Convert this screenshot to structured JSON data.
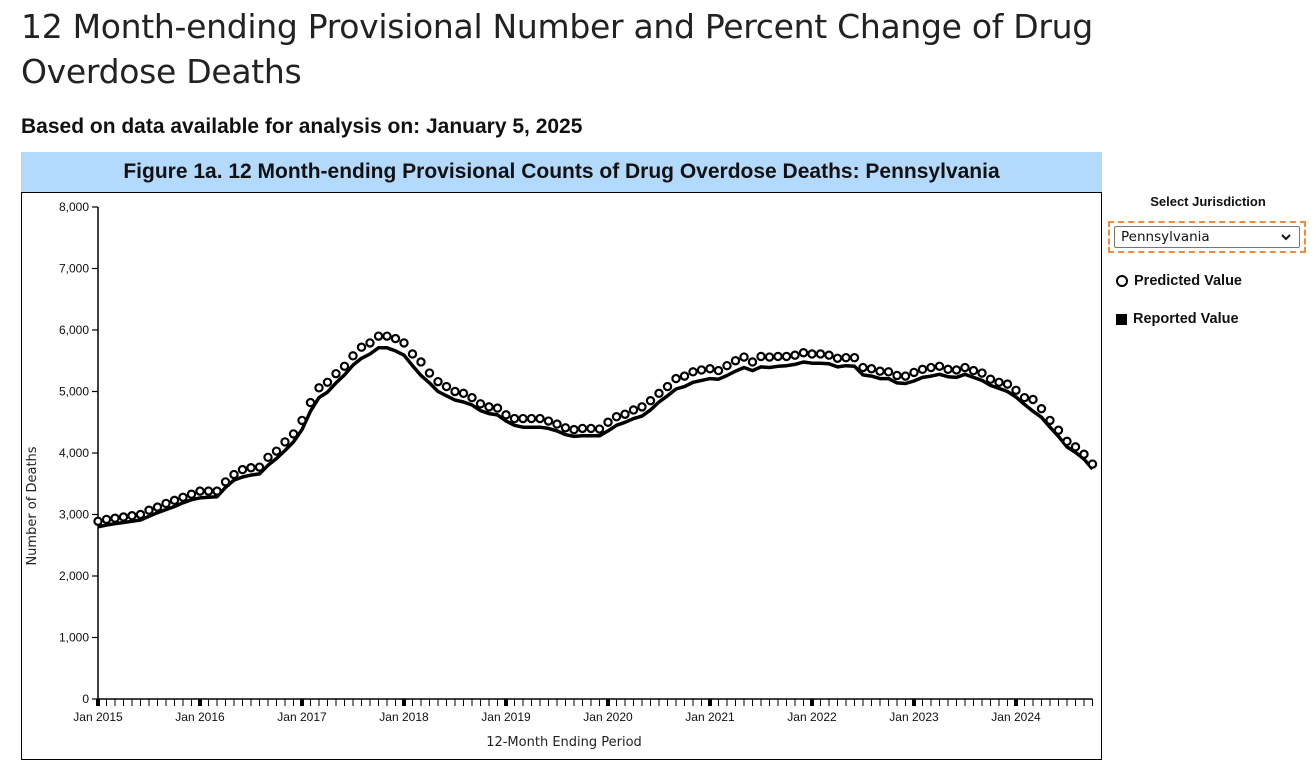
{
  "page": {
    "title": "12 Month-ending Provisional Number and Percent Change of Drug Overdose Deaths",
    "subtitle": "Based on data available for analysis on: January 5, 2025"
  },
  "figure": {
    "header": "Figure 1a. 12 Month-ending Provisional Counts of Drug Overdose Deaths: Pennsylvania",
    "header_bg": "#b3dafc"
  },
  "controls": {
    "select_label": "Select Jurisdiction",
    "selected_jurisdiction": "Pennsylvania",
    "focus_outline_color": "#f08a3c",
    "chevron_icon": "chevron-down-icon"
  },
  "legend": {
    "predicted_label": "Predicted Value",
    "predicted_icon": "open-circle-icon",
    "reported_label": "Reported Value",
    "reported_icon": "filled-square-icon"
  },
  "chart_data": {
    "type": "line",
    "title": "Figure 1a. 12 Month-ending Provisional Counts of Drug Overdose Deaths: Pennsylvania",
    "xlabel": "12-Month Ending Period",
    "ylabel": "Number of Deaths",
    "ylim": [
      0,
      8000
    ],
    "y_ticks": [
      0,
      1000,
      2000,
      3000,
      4000,
      5000,
      6000,
      7000,
      8000
    ],
    "y_tick_labels": [
      "0",
      "1,000",
      "2,000",
      "3,000",
      "4,000",
      "5,000",
      "6,000",
      "7,000",
      "8,000"
    ],
    "x_start": "Jan 2015",
    "x_end": "Aug 2024",
    "x_tick_labels": [
      "Jan 2015",
      "Jan 2016",
      "Jan 2017",
      "Jan 2018",
      "Jan 2019",
      "Jan 2020",
      "Jan 2021",
      "Jan 2022",
      "Jan 2023",
      "Jan 2024"
    ],
    "grid": false,
    "legend_position": "right",
    "series": [
      {
        "name": "Predicted Value",
        "marker": "open-circle",
        "values": [
          2890,
          2920,
          2940,
          2960,
          2980,
          3000,
          3070,
          3120,
          3180,
          3230,
          3280,
          3330,
          3380,
          3380,
          3380,
          3530,
          3650,
          3730,
          3760,
          3770,
          3930,
          4030,
          4180,
          4310,
          4530,
          4820,
          5060,
          5150,
          5290,
          5410,
          5580,
          5720,
          5790,
          5900,
          5900,
          5860,
          5790,
          5610,
          5480,
          5300,
          5160,
          5080,
          5000,
          4970,
          4900,
          4800,
          4750,
          4730,
          4620,
          4560,
          4560,
          4560,
          4560,
          4520,
          4470,
          4410,
          4380,
          4400,
          4400,
          4390,
          4500,
          4590,
          4630,
          4700,
          4750,
          4850,
          4970,
          5080,
          5210,
          5250,
          5320,
          5350,
          5370,
          5340,
          5420,
          5500,
          5560,
          5480,
          5570,
          5560,
          5570,
          5570,
          5590,
          5630,
          5610,
          5610,
          5590,
          5540,
          5550,
          5550,
          5390,
          5370,
          5330,
          5320,
          5260,
          5250,
          5310,
          5360,
          5390,
          5410,
          5360,
          5350,
          5390,
          5340,
          5300,
          5200,
          5150,
          5120,
          5020,
          4900,
          4870,
          4720,
          4530,
          4370,
          4190,
          4100,
          3980,
          3820
        ]
      },
      {
        "name": "Reported Value",
        "marker": "line",
        "values": [
          2800,
          2830,
          2850,
          2870,
          2890,
          2910,
          2970,
          3030,
          3080,
          3130,
          3190,
          3240,
          3270,
          3280,
          3290,
          3440,
          3560,
          3610,
          3640,
          3660,
          3800,
          3910,
          4040,
          4180,
          4380,
          4680,
          4900,
          4990,
          5140,
          5270,
          5430,
          5540,
          5610,
          5710,
          5710,
          5660,
          5590,
          5420,
          5260,
          5140,
          5000,
          4930,
          4860,
          4830,
          4780,
          4690,
          4640,
          4620,
          4520,
          4450,
          4420,
          4420,
          4420,
          4400,
          4360,
          4300,
          4270,
          4280,
          4280,
          4280,
          4360,
          4450,
          4500,
          4560,
          4600,
          4700,
          4830,
          4930,
          5040,
          5080,
          5150,
          5180,
          5210,
          5200,
          5260,
          5330,
          5390,
          5340,
          5400,
          5390,
          5410,
          5420,
          5440,
          5480,
          5460,
          5460,
          5450,
          5400,
          5420,
          5410,
          5270,
          5250,
          5210,
          5210,
          5140,
          5130,
          5170,
          5230,
          5250,
          5280,
          5240,
          5230,
          5280,
          5230,
          5180,
          5100,
          5050,
          5000,
          4910,
          4790,
          4680,
          4580,
          4420,
          4270,
          4100,
          4010,
          3900,
          3740
        ]
      }
    ]
  }
}
